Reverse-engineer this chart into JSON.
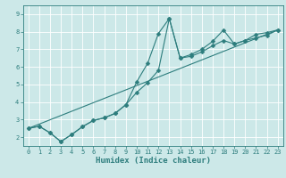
{
  "xlabel": "Humidex (Indice chaleur)",
  "background_color": "#cce8e8",
  "grid_color": "#ffffff",
  "line_color": "#2d7d7d",
  "xlim": [
    -0.5,
    23.5
  ],
  "ylim": [
    1.5,
    9.5
  ],
  "xticks": [
    0,
    1,
    2,
    3,
    4,
    5,
    6,
    7,
    8,
    9,
    10,
    11,
    12,
    13,
    14,
    15,
    16,
    17,
    18,
    19,
    20,
    21,
    22,
    23
  ],
  "yticks": [
    2,
    3,
    4,
    5,
    6,
    7,
    8,
    9
  ],
  "line1_x": [
    0,
    1,
    2,
    3,
    4,
    5,
    6,
    7,
    8,
    9,
    10,
    11,
    12,
    13,
    14,
    15,
    16,
    17,
    18,
    19,
    20,
    21,
    22,
    23
  ],
  "line1_y": [
    2.5,
    2.62,
    2.25,
    1.75,
    2.15,
    2.6,
    2.95,
    3.1,
    3.35,
    3.85,
    5.15,
    6.2,
    7.9,
    8.75,
    6.5,
    6.7,
    7.0,
    7.45,
    8.1,
    7.3,
    7.5,
    7.85,
    7.95,
    8.1
  ],
  "line2_x": [
    0,
    1,
    2,
    3,
    4,
    5,
    6,
    7,
    8,
    9,
    10,
    11,
    12,
    13,
    14,
    15,
    16,
    17,
    18,
    19,
    20,
    21,
    22,
    23
  ],
  "line2_y": [
    2.5,
    2.62,
    2.25,
    1.75,
    2.15,
    2.6,
    2.95,
    3.1,
    3.35,
    3.85,
    4.55,
    5.1,
    5.8,
    8.75,
    6.5,
    6.6,
    6.85,
    7.2,
    7.5,
    7.3,
    7.5,
    7.65,
    7.8,
    8.1
  ],
  "line3_x": [
    0,
    23
  ],
  "line3_y": [
    2.5,
    8.1
  ],
  "marker_size": 2.5,
  "line_width": 0.8,
  "tick_fontsize": 5,
  "xlabel_fontsize": 6.5
}
